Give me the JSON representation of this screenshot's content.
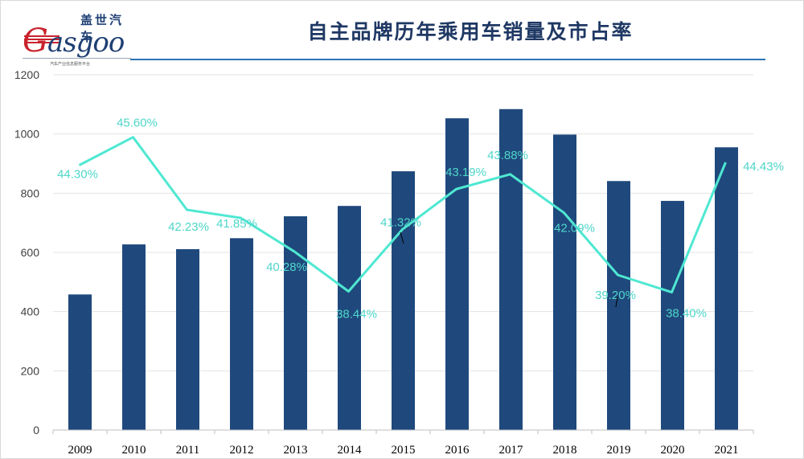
{
  "brand": {
    "name_cn": "盖世汽车",
    "name_en": "Gasgoo",
    "tagline": "汽车产业信息服务平台"
  },
  "chart_data": {
    "type": "bar",
    "title": "自主品牌历年乘用车销量及市占率",
    "categories": [
      "2009",
      "2010",
      "2011",
      "2012",
      "2013",
      "2014",
      "2015",
      "2016",
      "2017",
      "2018",
      "2019",
      "2020",
      "2021"
    ],
    "series": [
      {
        "values": [
          458,
          627,
          611,
          648,
          722,
          757,
          874,
          1053,
          1084,
          998,
          841,
          774,
          955
        ]
      },
      {
        "type": "line",
        "values": [
          44.3,
          45.6,
          42.23,
          41.85,
          40.28,
          38.44,
          41.32,
          43.19,
          43.88,
          42.09,
          39.2,
          38.4,
          44.43
        ],
        "labels": [
          "44.30%",
          "45.60%",
          "42.23%",
          "41.85%",
          "40.28%",
          "38.44%",
          "41.32%",
          "43.19%",
          "43.88%",
          "42.09%",
          "39.20%",
          "38.40%",
          "44.43%"
        ]
      }
    ],
    "y_ticks": [
      "0",
      "200",
      "400",
      "600",
      "800",
      "1000",
      "1200"
    ],
    "ylim": [
      0,
      1200
    ],
    "grid": true,
    "bar_color": "#1f497d",
    "line_color": "#4fe8d2"
  }
}
